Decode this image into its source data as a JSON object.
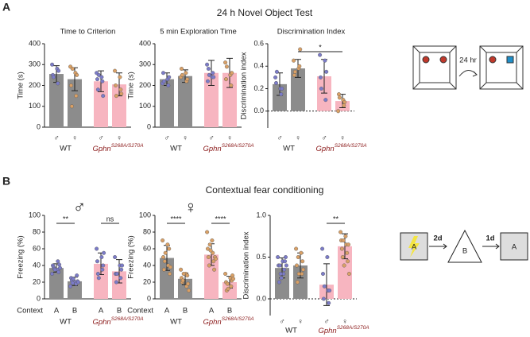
{
  "panels": [
    {
      "letter": "A",
      "title": "24 h Novel Object Test"
    },
    {
      "letter": "B",
      "title": "Contextual fear conditioning"
    }
  ],
  "diagrams": {
    "delay": "24 hr",
    "contexts": [
      "A",
      "B",
      "A"
    ],
    "intervals": [
      "2d",
      "1d"
    ]
  },
  "groups": [
    {
      "name": "WT"
    },
    {
      "name": "Gphn",
      "sup": "S268A/S270A"
    }
  ],
  "chart_data": [
    {
      "type": "bar",
      "title": "Time to Criterion",
      "ylabel": "Time (s)",
      "ylim": [
        0,
        400
      ],
      "yticks": [
        0,
        100,
        200,
        300,
        400
      ],
      "categories": [
        "♂",
        "♀",
        "♂",
        "♀"
      ],
      "category_colors": [
        "#3b7dd8",
        "#e0a050",
        "#3b7dd8",
        "#e0a050"
      ],
      "values": [
        255,
        230,
        220,
        205
      ],
      "errors": [
        40,
        55,
        50,
        55
      ],
      "colors": [
        "#8c8c8c",
        "#8c8c8c",
        "#f7b5c0",
        "#f7b5c0"
      ],
      "point_colors": [
        "#7b7bc8",
        "#d9a066",
        "#7b7bc8",
        "#d9a066"
      ],
      "points": [
        [
          300,
          280,
          250,
          210,
          240,
          270
        ],
        [
          290,
          260,
          200,
          150,
          100,
          250,
          280
        ],
        [
          260,
          240,
          230,
          220,
          180,
          150,
          250
        ],
        [
          270,
          240,
          200,
          180,
          150,
          160
        ]
      ]
    },
    {
      "type": "bar",
      "title": "5 min Exploration Time",
      "ylabel": "Time (s)",
      "ylim": [
        0,
        400
      ],
      "yticks": [
        0,
        100,
        200,
        300,
        400
      ],
      "categories": [
        "♂",
        "♀",
        "♂",
        "♀"
      ],
      "category_colors": [
        "#3b7dd8",
        "#e0a050",
        "#3b7dd8",
        "#e0a050"
      ],
      "values": [
        230,
        245,
        260,
        260
      ],
      "errors": [
        30,
        30,
        60,
        70
      ],
      "colors": [
        "#8c8c8c",
        "#8c8c8c",
        "#f7b5c0",
        "#f7b5c0"
      ],
      "point_colors": [
        "#7b7bc8",
        "#d9a066",
        "#7b7bc8",
        "#d9a066"
      ],
      "points": [
        [
          210,
          230,
          260,
          200,
          220,
          240
        ],
        [
          240,
          260,
          280,
          220,
          250,
          230
        ],
        [
          300,
          240,
          220,
          260,
          280,
          240,
          250
        ],
        [
          310,
          250,
          230,
          200,
          290,
          260
        ]
      ]
    },
    {
      "type": "bar",
      "title": "Discrimination Index",
      "ylabel": "Discrimination index",
      "ylim": [
        -0.15,
        0.6
      ],
      "yticks": [
        {
          "value": 0,
          "label": "0.0"
        },
        {
          "value": 0.2,
          "label": "0.2"
        },
        {
          "value": 0.4,
          "label": "0.4"
        },
        {
          "value": 0.6,
          "label": "0.6"
        }
      ],
      "zero_line": true,
      "categories": [
        "♂",
        "♀",
        "♂",
        "♀"
      ],
      "category_colors": [
        "#3b7dd8",
        "#e0a050",
        "#3b7dd8",
        "#e0a050"
      ],
      "values": [
        0.24,
        0.38,
        0.31,
        0.09
      ],
      "errors": [
        0.1,
        0.08,
        0.15,
        0.06
      ],
      "colors": [
        "#8c8c8c",
        "#8c8c8c",
        "#f7b5c0",
        "#f7b5c0"
      ],
      "point_colors": [
        "#7b7bc8",
        "#d9a066",
        "#7b7bc8",
        "#d9a066"
      ],
      "points": [
        [
          0.3,
          0.2,
          0.25,
          0.15,
          0.35,
          0.2
        ],
        [
          0.45,
          0.38,
          0.32,
          0.4,
          0.35,
          0.55
        ],
        [
          0.5,
          0.45,
          0.3,
          0.1,
          0.2,
          0.35
        ],
        [
          0,
          0.1,
          0.15,
          0.05,
          0.12,
          0.08
        ]
      ],
      "significance": [
        {
          "from": 1,
          "to": 3,
          "label": "*"
        }
      ]
    },
    {
      "type": "bar",
      "ylabel": "Freezing (%)",
      "ylim": [
        0,
        100
      ],
      "yticks": [
        0,
        20,
        40,
        60,
        80,
        100
      ],
      "sex_symbol": "♂",
      "sex_color": "#3b7dd8",
      "context_label": "Context",
      "categories": [
        "A",
        "B",
        "A",
        "B"
      ],
      "values": [
        37,
        21,
        42,
        33
      ],
      "errors": [
        5,
        5,
        13,
        14
      ],
      "colors": [
        "#8c8c8c",
        "#8c8c8c",
        "#f7b5c0",
        "#f7b5c0"
      ],
      "point_colors": [
        "#7b7bc8",
        "#7b7bc8",
        "#7b7bc8",
        "#7b7bc8"
      ],
      "points": [
        [
          30,
          35,
          40,
          45,
          38,
          32,
          36,
          41,
          35,
          37
        ],
        [
          15,
          20,
          25,
          18,
          22,
          28,
          19,
          21,
          24,
          20
        ],
        [
          60,
          50,
          45,
          35,
          30,
          40,
          25,
          55
        ],
        [
          50,
          40,
          30,
          25,
          20,
          35,
          30,
          40
        ]
      ],
      "significance": [
        {
          "from": 0,
          "to": 1,
          "label": "**"
        },
        {
          "from": 2,
          "to": 3,
          "label": "ns"
        }
      ]
    },
    {
      "type": "bar",
      "ylabel": "Freezing (%)",
      "ylim": [
        0,
        100
      ],
      "yticks": [
        0,
        20,
        40,
        60,
        80,
        100
      ],
      "sex_symbol": "♀",
      "sex_color": "#e0a050",
      "context_label": "Context",
      "categories": [
        "A",
        "B",
        "A",
        "B"
      ],
      "values": [
        49,
        24,
        53,
        20
      ],
      "errors": [
        15,
        7,
        13,
        7
      ],
      "colors": [
        "#8c8c8c",
        "#8c8c8c",
        "#f7b5c0",
        "#f7b5c0"
      ],
      "point_colors": [
        "#d9a066",
        "#d9a066",
        "#d9a066",
        "#d9a066"
      ],
      "points": [
        [
          70,
          65,
          50,
          40,
          35,
          60,
          45,
          30,
          55,
          38
        ],
        [
          35,
          30,
          25,
          15,
          20,
          28,
          22,
          18,
          30,
          10
        ],
        [
          80,
          70,
          60,
          55,
          50,
          45,
          40,
          35,
          65,
          50,
          58,
          48
        ],
        [
          30,
          25,
          20,
          15,
          10,
          22,
          18,
          28,
          12,
          24
        ]
      ],
      "significance": [
        {
          "from": 0,
          "to": 1,
          "label": "****"
        },
        {
          "from": 2,
          "to": 3,
          "label": "****"
        }
      ]
    },
    {
      "type": "bar",
      "ylabel": "Discrimination index",
      "ylim": [
        -0.2,
        1.0
      ],
      "yticks": [
        {
          "value": 0,
          "label": "0.0"
        },
        {
          "value": 0.5,
          "label": "0.5"
        },
        {
          "value": 1,
          "label": "1.0"
        }
      ],
      "zero_line": true,
      "categories": [
        "♂",
        "♀",
        "♂",
        "♀"
      ],
      "category_colors": [
        "#3b7dd8",
        "#e0a050",
        "#3b7dd8",
        "#e0a050"
      ],
      "values": [
        0.37,
        0.4,
        0.17,
        0.63
      ],
      "errors": [
        0.12,
        0.15,
        0.25,
        0.15
      ],
      "colors": [
        "#8c8c8c",
        "#8c8c8c",
        "#f7b5c0",
        "#f7b5c0"
      ],
      "point_colors": [
        "#7b7bc8",
        "#d9a066",
        "#7b7bc8",
        "#d9a066"
      ],
      "points": [
        [
          0.5,
          0.45,
          0.4,
          0.3,
          0.2,
          0.35,
          0.4,
          0.45,
          0.3,
          0.5,
          0.25,
          0.4
        ],
        [
          0.6,
          0.55,
          0.4,
          0.3,
          0.2,
          0.45,
          0.5,
          0.35,
          0.3
        ],
        [
          0.6,
          0.5,
          0.3,
          0.1,
          0,
          -0.05,
          0.15,
          0.1
        ],
        [
          0.8,
          0.75,
          0.7,
          0.65,
          0.6,
          0.55,
          0.5,
          0.45,
          0.7,
          0.65,
          0.4,
          0.3
        ]
      ],
      "significance": [
        {
          "from": 2,
          "to": 3,
          "label": "**"
        }
      ]
    }
  ]
}
